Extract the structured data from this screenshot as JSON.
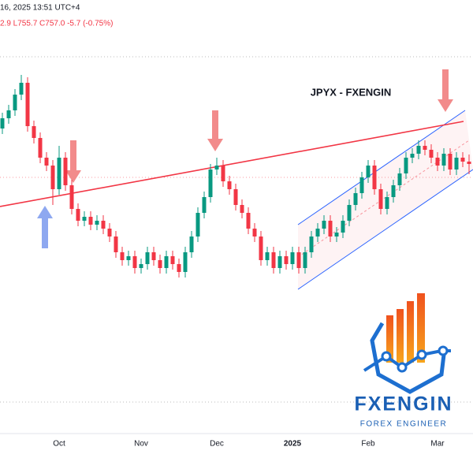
{
  "chart_data": {
    "type": "candlestick",
    "title": "JPYX - FXENGIN",
    "annotations": [
      "16, 2025 13:51 UTC+4",
      "2.9 L755.7 C757.0 -5.7 (-0.75%)"
    ],
    "categories": [
      null,
      null,
      null,
      null,
      null,
      null,
      null,
      null,
      null,
      "Oct",
      null,
      null,
      null,
      null,
      null,
      null,
      null,
      null,
      null,
      null,
      null,
      null,
      "Nov",
      null,
      null,
      null,
      null,
      null,
      null,
      null,
      null,
      null,
      null,
      null,
      "Dec",
      null,
      null,
      null,
      null,
      null,
      null,
      null,
      null,
      null,
      null,
      null,
      "2025",
      null,
      null,
      null,
      null,
      null,
      null,
      null,
      null,
      null,
      null,
      null,
      "Feb",
      null,
      null,
      null,
      null,
      null,
      null,
      null,
      null,
      null,
      null,
      "Mar",
      null,
      null,
      null,
      null,
      null
    ],
    "open": [
      761.5,
      762.8,
      763.8,
      765.8,
      767.3,
      761.8,
      760.3,
      757.8,
      756.8,
      753.8,
      757.8,
      754.3,
      751.3,
      749.8,
      750.3,
      749.3,
      749.8,
      748.8,
      747.8,
      745.8,
      744.8,
      745.3,
      743.8,
      744.3,
      745.8,
      744.8,
      743.8,
      745.3,
      744.3,
      743.3,
      745.8,
      747.8,
      750.8,
      752.8,
      756.3,
      756.8,
      754.8,
      753.8,
      751.8,
      750.8,
      748.8,
      747.8,
      744.8,
      745.8,
      743.8,
      745.3,
      744.3,
      745.8,
      743.8,
      745.8,
      747.8,
      748.8,
      749.8,
      747.8,
      748.3,
      749.8,
      751.8,
      753.3,
      755.3,
      756.8,
      753.8,
      751.3,
      752.8,
      754.3,
      755.8,
      757.8,
      758.3,
      759.3,
      758.8,
      757.8,
      756.8,
      758.3,
      756.3,
      757.8,
      757.3
    ],
    "high": [
      763.5,
      764.5,
      766.5,
      768.3,
      768.0,
      762.5,
      761.0,
      758.5,
      757.5,
      759.3,
      758.5,
      755.0,
      752.0,
      751.0,
      751.0,
      750.5,
      750.5,
      749.5,
      748.5,
      746.5,
      746.0,
      746.0,
      745.0,
      746.5,
      746.5,
      745.5,
      746.0,
      746.0,
      745.0,
      746.5,
      748.5,
      751.5,
      753.5,
      757.0,
      757.8,
      757.5,
      755.5,
      754.5,
      752.5,
      751.5,
      749.5,
      748.5,
      746.5,
      746.5,
      746.0,
      746.0,
      746.5,
      746.5,
      746.5,
      748.5,
      749.5,
      750.5,
      750.5,
      749.0,
      750.5,
      752.5,
      754.0,
      756.0,
      757.5,
      757.5,
      754.5,
      753.5,
      755.0,
      756.5,
      758.5,
      759.0,
      760.0,
      760.0,
      759.5,
      758.5,
      759.0,
      759.0,
      758.5,
      758.5,
      758.2
    ],
    "low": [
      760.8,
      762.1,
      763.1,
      765.1,
      761.1,
      759.6,
      757.1,
      756.1,
      751.8,
      753.1,
      753.6,
      750.6,
      749.1,
      749.1,
      748.6,
      748.6,
      748.1,
      747.1,
      745.1,
      744.1,
      744.1,
      743.1,
      743.1,
      743.6,
      744.1,
      743.1,
      743.1,
      743.6,
      742.6,
      742.6,
      745.1,
      747.1,
      750.1,
      752.1,
      755.6,
      754.1,
      753.1,
      751.1,
      750.1,
      748.1,
      747.1,
      744.1,
      744.1,
      743.1,
      743.1,
      743.6,
      743.6,
      743.1,
      743.1,
      745.1,
      747.1,
      748.1,
      747.1,
      747.1,
      747.6,
      749.1,
      751.1,
      752.6,
      754.6,
      753.1,
      750.6,
      750.6,
      752.1,
      753.6,
      755.1,
      757.1,
      757.6,
      758.1,
      757.1,
      756.1,
      756.1,
      755.6,
      755.6,
      756.6,
      755.7
    ],
    "close": [
      762.8,
      763.8,
      765.8,
      767.3,
      761.8,
      760.3,
      757.8,
      756.8,
      753.8,
      757.8,
      754.3,
      751.3,
      749.8,
      750.3,
      749.3,
      749.8,
      748.8,
      747.8,
      745.8,
      744.8,
      745.3,
      743.8,
      744.3,
      745.8,
      744.8,
      743.8,
      745.3,
      744.3,
      743.3,
      745.8,
      747.8,
      750.8,
      752.8,
      756.3,
      756.8,
      754.8,
      753.8,
      751.8,
      750.8,
      748.8,
      747.8,
      744.8,
      745.8,
      743.8,
      745.3,
      744.3,
      745.8,
      743.8,
      745.8,
      747.8,
      748.8,
      749.8,
      747.8,
      748.3,
      749.8,
      751.8,
      753.3,
      755.3,
      756.8,
      753.8,
      751.3,
      752.8,
      754.3,
      755.8,
      757.8,
      758.3,
      759.3,
      758.8,
      757.8,
      756.8,
      758.3,
      756.3,
      757.8,
      757.3,
      757.0
    ],
    "up_color": "#089981",
    "down_color": "#f23645",
    "ylim": [
      722.8,
      777.8
    ]
  },
  "logo": {
    "name": "FXENGIN",
    "tagline": "FOREX ENGINEER"
  }
}
